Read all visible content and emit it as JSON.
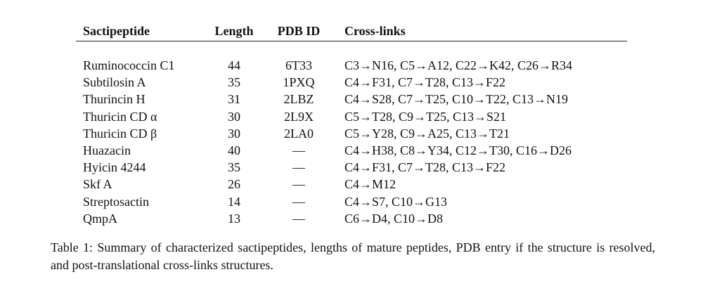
{
  "table": {
    "headers": [
      "Sactipeptide",
      "Length",
      "PDB ID",
      "Cross-links"
    ],
    "rows": [
      [
        "Ruminococcin C1",
        44,
        "6T33",
        "C3→N16, C5→A12, C22→K42, C26→R34"
      ],
      [
        "Subtilosin A",
        35,
        "1PXQ",
        "C4→F31, C7→T28, C13→F22"
      ],
      [
        "Thurincin H",
        31,
        "2LBZ",
        "C4→S28, C7→T25, C10→T22, C13→N19"
      ],
      [
        "Thuricin CD α",
        30,
        "2L9X",
        "C5→T28, C9→T25, C13→S21"
      ],
      [
        "Thuricin CD β",
        30,
        "2LA0",
        "C5→Y28, C9→A25, C13→T21"
      ],
      [
        "Huazacin",
        40,
        "—",
        "C4→H38, C8→Y34, C12→T30, C16→D26"
      ],
      [
        "Hyicin 4244",
        35,
        "—",
        "C4→F31, C7→T28, C13→F22"
      ],
      [
        "Skf A",
        26,
        "—",
        "C4→M12"
      ],
      [
        "Streptosactin",
        14,
        "—",
        "C4→S7, C10→G13"
      ],
      [
        "QmpA",
        13,
        "—",
        "C6→D4, C10→D8"
      ]
    ],
    "caption": "Table 1: Summary of characterized sactipeptides, lengths of mature peptides, PDB entry if the structure is resolved, and post-translational cross-links structures."
  }
}
